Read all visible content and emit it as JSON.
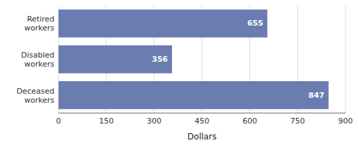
{
  "chart_data": {
    "type": "bar",
    "orientation": "horizontal",
    "categories": [
      "Deceased\nworkers",
      "Disabled\nworkers",
      "Retired\nworkers"
    ],
    "values": [
      847,
      356,
      655
    ],
    "color": "#6b7cb0",
    "xlabel": "Dollars",
    "xlim": [
      0,
      900
    ],
    "xticks": [
      0,
      150,
      300,
      450,
      600,
      750,
      900
    ],
    "grid": true,
    "data_labels": true
  }
}
